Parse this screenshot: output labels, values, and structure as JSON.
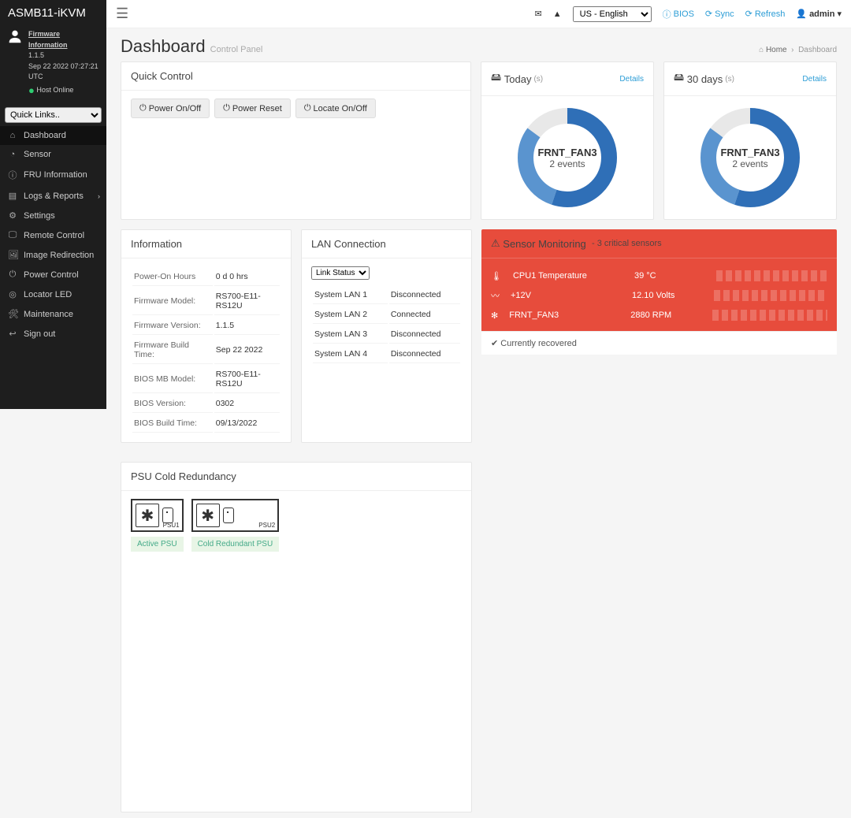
{
  "product": "ASMB11-iKVM",
  "firmware": {
    "link": "Firmware Information",
    "version": "1.1.5",
    "date": "Sep 22 2022 07:27:21 UTC",
    "host_status": "Host Online"
  },
  "quicklinks_placeholder": "Quick Links..",
  "nav": [
    {
      "icon": "⌂",
      "label": "Dashboard",
      "active": true
    },
    {
      "icon": "◔",
      "label": "Sensor"
    },
    {
      "icon": "ⓘ",
      "label": "FRU Information"
    },
    {
      "icon": "▤",
      "label": "Logs & Reports",
      "chev": true
    },
    {
      "icon": "⚙",
      "label": "Settings"
    },
    {
      "icon": "🖵",
      "label": "Remote Control"
    },
    {
      "icon": "🖼",
      "label": "Image Redirection"
    },
    {
      "icon": "⏻",
      "label": "Power Control"
    },
    {
      "icon": "◎",
      "label": "Locator LED"
    },
    {
      "icon": "🛠",
      "label": "Maintenance"
    },
    {
      "icon": "↩",
      "label": "Sign out"
    }
  ],
  "topbar": {
    "lang": "US - English",
    "bios": "BIOS",
    "sync": "Sync",
    "refresh": "Refresh",
    "user": "admin"
  },
  "header": {
    "title": "Dashboard",
    "subtitle": "Control Panel",
    "crumb_home": "Home",
    "crumb_page": "Dashboard"
  },
  "quick_control": {
    "title": "Quick Control",
    "btns": [
      "Power On/Off",
      "Power Reset",
      "Locate On/Off"
    ]
  },
  "today": {
    "title": "Today",
    "unit": "(s)",
    "details": "Details",
    "center1": "FRNT_FAN3",
    "center2": "2 events"
  },
  "days30": {
    "title": "30 days",
    "unit": "(s)",
    "details": "Details",
    "center1": "FRNT_FAN3",
    "center2": "2 events"
  },
  "donut_colors": {
    "arc1": "#2f6fb7",
    "arc2": "#5a94cf",
    "track": "#e8e8e8"
  },
  "information": {
    "title": "Information",
    "rows": [
      [
        "Power-On Hours",
        "0 d 0 hrs"
      ],
      [
        "Firmware Model:",
        "RS700-E11-RS12U"
      ],
      [
        "Firmware Version:",
        "1.1.5"
      ],
      [
        "Firmware Build Time:",
        "Sep 22 2022"
      ],
      [
        "BIOS MB Model:",
        "RS700-E11-RS12U"
      ],
      [
        "BIOS Version:",
        "0302"
      ],
      [
        "BIOS Build Time:",
        "09/13/2022"
      ]
    ]
  },
  "lan": {
    "title": "LAN Connection",
    "select": "Link Status",
    "rows": [
      [
        "System LAN 1",
        "Disconnected"
      ],
      [
        "System LAN 2",
        "Connected"
      ],
      [
        "System LAN 3",
        "Disconnected"
      ],
      [
        "System LAN 4",
        "Disconnected"
      ]
    ]
  },
  "psu": {
    "title": "PSU Cold Redundancy",
    "units": [
      {
        "name": "PSU1",
        "badge": "Active PSU"
      },
      {
        "name": "PSU2",
        "badge": "Cold Redundant PSU"
      }
    ]
  },
  "sensor": {
    "title": "Sensor Monitoring",
    "sub": "- 3 critical sensors",
    "rows": [
      {
        "icon": "🌡",
        "name": "CPU1 Temperature",
        "val": "39 °C"
      },
      {
        "icon": "〰",
        "name": "+12V",
        "val": "12.10 Volts"
      },
      {
        "icon": "✻",
        "name": "FRNT_FAN3",
        "val": "2880 RPM"
      }
    ],
    "recovered": "Currently recovered"
  }
}
